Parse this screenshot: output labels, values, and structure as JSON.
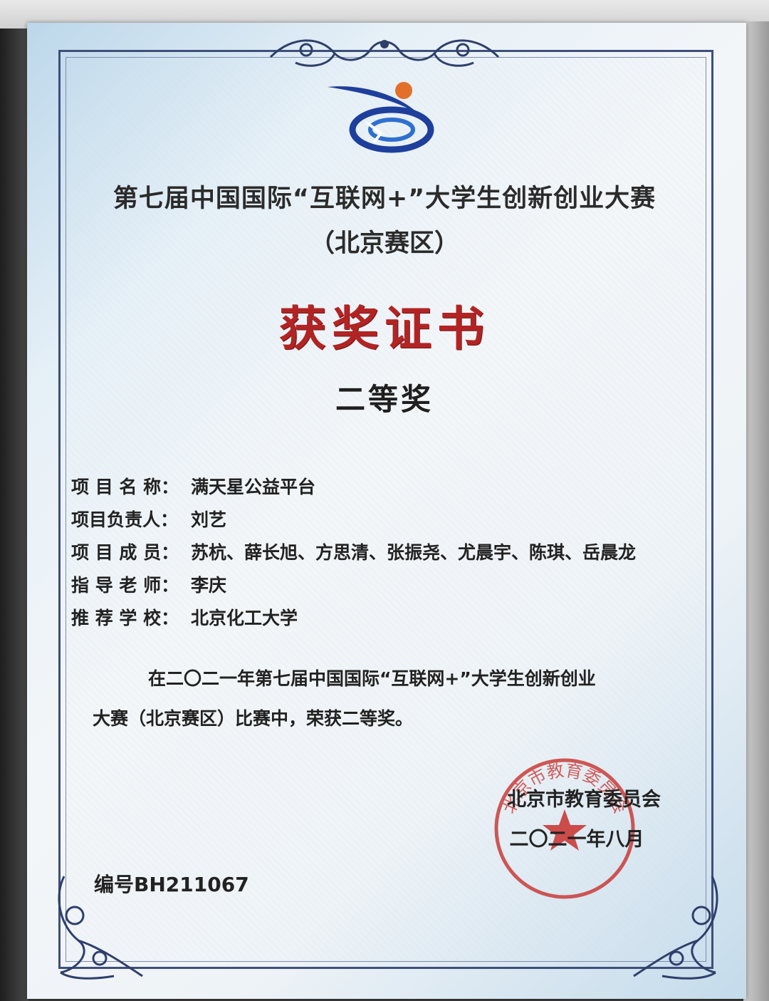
{
  "certificate": {
    "title": "第七届中国国际“互联网+”大学生创新创业大赛",
    "subtitle": "（北京赛区）",
    "heading": "获奖证书",
    "award_level": "二等奖",
    "fields": [
      {
        "label": "项 目 名 称：",
        "value": "满天星公益平台"
      },
      {
        "label": "项目负责人：",
        "value": "刘艺"
      },
      {
        "label": "项 目 成 员：",
        "value": "苏杭、薛长旭、方思清、张振尧、尤晨宇、陈琪、岳晨龙"
      },
      {
        "label": "指 导 老 师：",
        "value": "李庆"
      },
      {
        "label": "推 荐 学 校：",
        "value": "北京化工大学"
      }
    ],
    "body_line1": "在二〇二一年第七届中国国际“互联网+”大学生创新创业",
    "body_line2": "大赛（北京赛区）比赛中，荣获二等奖。",
    "issuer": "北京市教育委员会",
    "issue_date": "二〇二一年八月",
    "serial": "编号BH211067",
    "seal_text": "北京市教育委员会"
  },
  "colors": {
    "heading_red": "#b22424",
    "seal_red": "#c8302c",
    "frame_blue": "#3e4f7a",
    "logo_blue": "#1e3f9c",
    "logo_orange": "#e2702a"
  },
  "icons": [
    "competition-logo",
    "official-seal",
    "ornament-scroll"
  ]
}
